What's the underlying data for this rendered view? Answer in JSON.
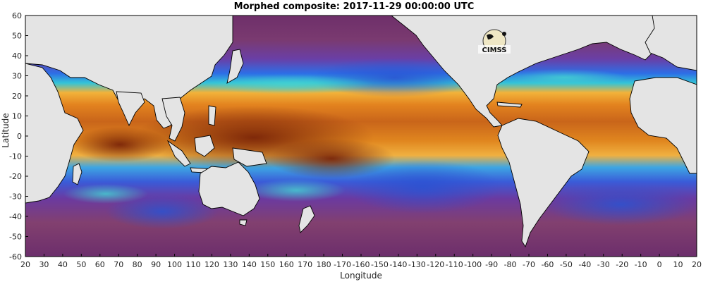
{
  "title": "Morphed composite: 2017-11-29 00:00:00 UTC",
  "xlabel": "Longitude",
  "ylabel": "Latitude",
  "x_ticks": [
    "20",
    "30",
    "40",
    "50",
    "60",
    "70",
    "80",
    "90",
    "100",
    "110",
    "120",
    "130",
    "140",
    "150",
    "160",
    "170",
    "180",
    "-170",
    "-160",
    "-150",
    "-140",
    "-130",
    "-120",
    "-110",
    "-100",
    "-90",
    "-80",
    "-70",
    "-60",
    "-50",
    "-40",
    "-30",
    "-20",
    "-10",
    "0",
    "10",
    "20"
  ],
  "y_ticks": [
    "60",
    "50",
    "40",
    "30",
    "20",
    "10",
    "0",
    "-10",
    "-20",
    "-30",
    "-40",
    "-50",
    "-60"
  ],
  "logo_text": "CIMSS",
  "colors": {
    "land": "#e4e4e4",
    "ocean_dry": "#7a2f72",
    "ocean_mid": "#3a5ad8",
    "ocean_moist": "#d97a1c",
    "ocean_very_moist": "#8a2f0a"
  }
}
